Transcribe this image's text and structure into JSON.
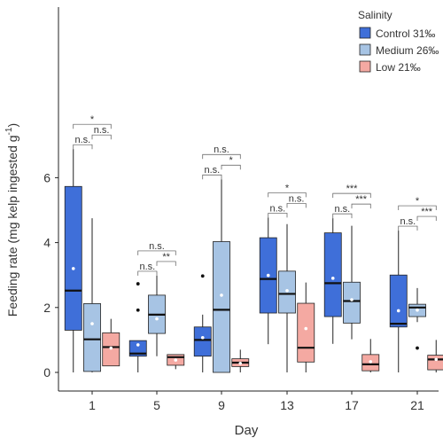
{
  "chart_data": {
    "type": "box",
    "xlabel": "Day",
    "ylabel": "Feeding rate (mg kelp ingested g",
    "ylabel_sup": "-1",
    "ylabel_end": ")",
    "ylim": [
      0,
      7.2
    ],
    "yticks": [
      "0",
      "2",
      "4",
      "6"
    ],
    "ytick_values": [
      0,
      2,
      4,
      6
    ],
    "categories": [
      "1",
      "5",
      "9",
      "13",
      "17",
      "21"
    ],
    "legend": {
      "title": "Salinity",
      "placement": "top-right",
      "entries": [
        "Control 31‰",
        "Medium 26‰",
        "Low 21‰"
      ]
    },
    "colors": {
      "control": "#3f6fd9",
      "medium": "#a7c4e4",
      "low": "#f4a9a2",
      "stroke": "#222222",
      "text": "#333333",
      "mean_point": "#ffffff"
    },
    "series": [
      {
        "name": "Control 31‰",
        "color_key": "control",
        "boxes": [
          {
            "min": 0.0,
            "q1": 1.3,
            "median": 2.52,
            "q3": 5.73,
            "max": 6.88,
            "mean": 3.2,
            "outliers": []
          },
          {
            "min": 0.0,
            "q1": 0.5,
            "median": 0.58,
            "q3": 0.98,
            "max": 0.98,
            "mean": 0.85,
            "outliers": [
              2.73,
              1.92
            ]
          },
          {
            "min": 0.0,
            "q1": 0.5,
            "median": 1.0,
            "q3": 1.4,
            "max": 1.78,
            "mean": 1.07,
            "outliers": [
              2.97
            ]
          },
          {
            "min": 0.87,
            "q1": 1.83,
            "median": 2.88,
            "q3": 4.15,
            "max": 4.77,
            "mean": 2.99,
            "outliers": []
          },
          {
            "min": 0.88,
            "q1": 1.72,
            "median": 2.75,
            "q3": 4.3,
            "max": 4.75,
            "mean": 2.9,
            "outliers": []
          },
          {
            "min": 0.0,
            "q1": 1.4,
            "median": 1.5,
            "q3": 3.0,
            "max": 4.37,
            "mean": 1.9,
            "outliers": []
          }
        ]
      },
      {
        "name": "Medium 26‰",
        "color_key": "medium",
        "boxes": [
          {
            "min": 0.0,
            "q1": 0.03,
            "median": 1.02,
            "q3": 2.12,
            "max": 4.75,
            "mean": 1.5,
            "outliers": []
          },
          {
            "min": 0.5,
            "q1": 1.2,
            "median": 1.78,
            "q3": 2.38,
            "max": 2.98,
            "mean": 1.65,
            "outliers": []
          },
          {
            "min": 0.0,
            "q1": 0.0,
            "median": 1.93,
            "q3": 4.03,
            "max": 5.95,
            "mean": 2.38,
            "outliers": []
          },
          {
            "min": 0.0,
            "q1": 1.83,
            "median": 2.42,
            "q3": 3.12,
            "max": 4.57,
            "mean": 2.52,
            "outliers": []
          },
          {
            "min": 1.02,
            "q1": 1.52,
            "median": 2.2,
            "q3": 2.78,
            "max": 4.52,
            "mean": 2.24,
            "outliers": []
          },
          {
            "min": 1.55,
            "q1": 1.72,
            "median": 2.0,
            "q3": 2.1,
            "max": 2.6,
            "mean": 1.92,
            "outliers": [
              0.75
            ]
          }
        ]
      },
      {
        "name": "Low 21‰",
        "color_key": "low",
        "boxes": [
          {
            "min": 0.2,
            "q1": 0.2,
            "median": 0.78,
            "q3": 1.22,
            "max": 1.65,
            "mean": 0.75,
            "outliers": []
          },
          {
            "min": 0.1,
            "q1": 0.22,
            "median": 0.47,
            "q3": 0.55,
            "max": 0.55,
            "mean": 0.38,
            "outliers": []
          },
          {
            "min": 0.0,
            "q1": 0.18,
            "median": 0.3,
            "q3": 0.42,
            "max": 0.7,
            "mean": 0.28,
            "outliers": []
          },
          {
            "min": 0.0,
            "q1": 0.32,
            "median": 0.76,
            "q3": 2.13,
            "max": 2.77,
            "mean": 1.35,
            "outliers": []
          },
          {
            "min": 0.0,
            "q1": 0.05,
            "median": 0.25,
            "q3": 0.55,
            "max": 1.03,
            "mean": 0.33,
            "outliers": []
          },
          {
            "min": 0.0,
            "q1": 0.08,
            "median": 0.4,
            "q3": 0.53,
            "max": 1.0,
            "mean": 0.4,
            "outliers": []
          }
        ]
      }
    ],
    "significance": [
      {
        "day": "1",
        "lower": [
          "n.s.",
          "n.s."
        ],
        "upper": "*"
      },
      {
        "day": "5",
        "lower": [
          "n.s.",
          "**"
        ],
        "upper": "n.s."
      },
      {
        "day": "9",
        "lower": [
          "n.s.",
          "*"
        ],
        "upper": "n.s."
      },
      {
        "day": "13",
        "lower": [
          "n.s.",
          "n.s."
        ],
        "upper": "*"
      },
      {
        "day": "17",
        "lower": [
          "n.s.",
          "***"
        ],
        "upper": "***"
      },
      {
        "day": "21",
        "lower": [
          "n.s.",
          "***"
        ],
        "upper": "*"
      }
    ]
  }
}
